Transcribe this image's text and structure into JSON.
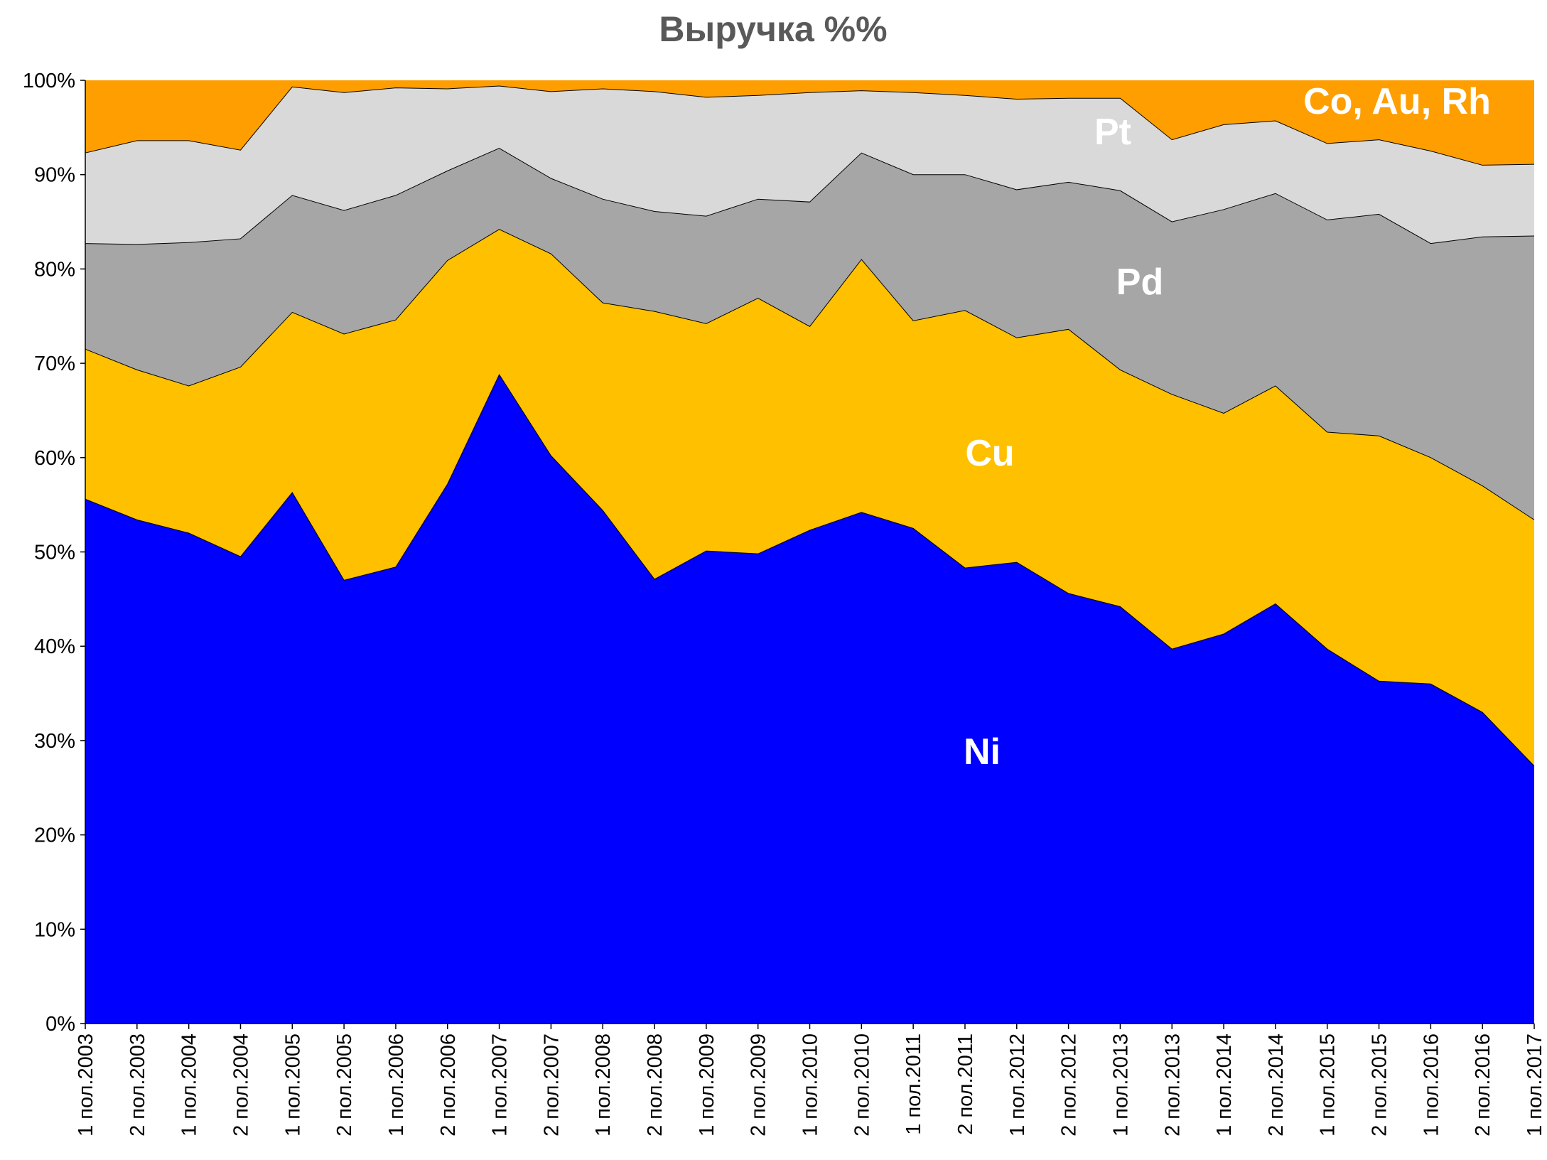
{
  "chart_data": {
    "type": "area",
    "stacked": true,
    "percent": true,
    "title": "Выручка %%",
    "xlabel": "",
    "ylabel": "",
    "ylim": [
      0,
      100
    ],
    "y_ticks": [
      "0%",
      "10%",
      "20%",
      "30%",
      "40%",
      "50%",
      "60%",
      "70%",
      "80%",
      "90%",
      "100%"
    ],
    "grid": false,
    "legend": "none",
    "categories": [
      "1 пол.2003",
      "2 пол.2003",
      "1 пол.2004",
      "2 пол.2004",
      "1 пол.2005",
      "2 пол.2005",
      "1 пол.2006",
      "2 пол.2006",
      "1 пол.2007",
      "2 пол.2007",
      "1 пол.2008",
      "2 пол.2008",
      "1 пол.2009",
      "2 пол.2009",
      "1 пол.2010",
      "2 пол.2010",
      "1 пол.2011",
      "2 пол.2011",
      "1 пол.2012",
      "2 пол.2012",
      "1 пол.2013",
      "2 пол.2013",
      "1 пол.2014",
      "2 пол.2014",
      "1 пол.2015",
      "2 пол.2015",
      "1 пол.2016",
      "2 пол.2016",
      "1 пол.2017"
    ],
    "series": [
      {
        "name": "Ni",
        "color": "#0000FF",
        "values": [
          55.6,
          53.4,
          52.0,
          49.5,
          56.3,
          47.0,
          48.4,
          57.2,
          68.8,
          60.2,
          54.4,
          47.1,
          50.1,
          49.8,
          52.3,
          54.2,
          52.5,
          48.3,
          48.9,
          45.6,
          44.2,
          39.7,
          41.3,
          44.5,
          39.7,
          36.3,
          36.0,
          33.0,
          27.3
        ]
      },
      {
        "name": "Cu",
        "color": "#FFC000",
        "values": [
          15.9,
          15.9,
          15.6,
          20.1,
          19.1,
          26.1,
          26.2,
          23.7,
          15.4,
          21.4,
          22.0,
          28.4,
          24.1,
          27.1,
          21.6,
          26.8,
          22.0,
          27.3,
          23.8,
          28.0,
          25.1,
          27.0,
          23.4,
          23.1,
          23.0,
          26.0,
          24.0,
          24.0,
          26.1
        ]
      },
      {
        "name": "Pd",
        "color": "#A6A6A6",
        "values": [
          11.2,
          13.3,
          15.2,
          13.6,
          12.4,
          13.1,
          13.2,
          9.5,
          8.6,
          8.0,
          11.0,
          10.6,
          11.4,
          10.5,
          13.2,
          11.3,
          15.5,
          14.4,
          15.7,
          15.6,
          19.0,
          18.3,
          21.6,
          20.4,
          22.5,
          23.5,
          22.7,
          26.4,
          30.1
        ]
      },
      {
        "name": "Pt",
        "color": "#D9D9D9",
        "values": [
          9.6,
          11.0,
          10.8,
          9.4,
          11.5,
          12.5,
          11.4,
          8.7,
          6.6,
          9.2,
          11.7,
          12.7,
          12.6,
          11.0,
          11.6,
          6.6,
          8.7,
          8.4,
          9.6,
          8.9,
          9.8,
          8.7,
          9.0,
          7.7,
          8.1,
          7.9,
          9.8,
          7.6,
          7.6
        ]
      },
      {
        "name": "Co, Au, Rh",
        "color": "#FF9E00",
        "values": [
          7.7,
          6.4,
          6.4,
          7.4,
          0.7,
          1.3,
          0.8,
          0.9,
          0.6,
          1.2,
          0.9,
          1.2,
          1.8,
          1.6,
          1.3,
          1.1,
          1.3,
          1.6,
          2.0,
          1.9,
          1.9,
          6.3,
          4.7,
          4.3,
          6.7,
          6.3,
          7.5,
          9.0,
          8.9
        ]
      }
    ],
    "series_labels": [
      "Ni",
      "Cu",
      "Pd",
      "Pt",
      "Co, Au, Rh"
    ]
  }
}
